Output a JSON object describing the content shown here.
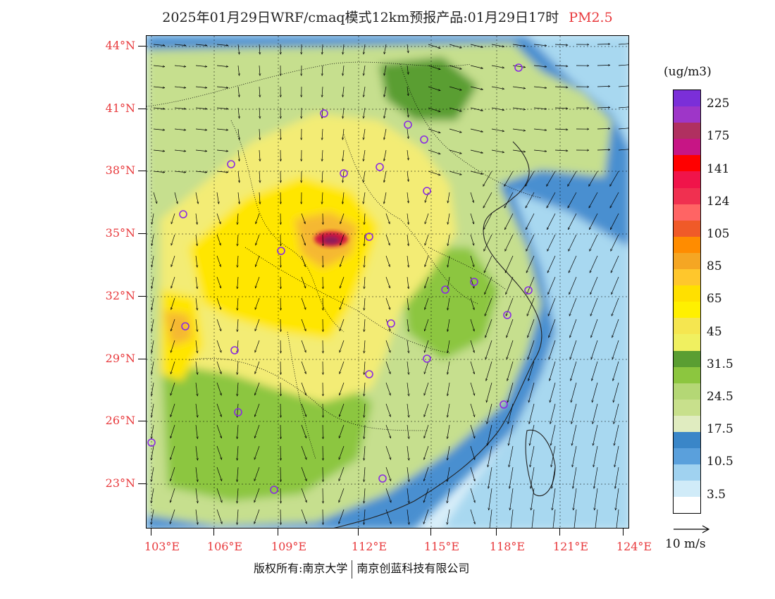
{
  "title": {
    "main": "2025年01月29日WRF/cmaq模式12km预报产品:01月29日17时",
    "species": "PM2.5"
  },
  "latitude_labels": [
    "44°N",
    "41°N",
    "38°N",
    "35°N",
    "32°N",
    "29°N",
    "26°N",
    "23°N"
  ],
  "longitude_labels": [
    "103°E",
    "106°E",
    "109°E",
    "112°E",
    "115°E",
    "118°E",
    "121°E",
    "124°E"
  ],
  "legend": {
    "unit": "(ug/m3)",
    "labels": [
      "225",
      "175",
      "141",
      "124",
      "105",
      "85",
      "65",
      "45",
      "31.5",
      "24.5",
      "17.5",
      "10.5",
      "3.5"
    ],
    "colors": [
      "#7b2fd8",
      "#9e36c8",
      "#b03060",
      "#c71585",
      "#ff0000",
      "#f0144a",
      "#f03050",
      "#ff6464",
      "#f05a28",
      "#ff8c00",
      "#f5a623",
      "#ffc72c",
      "#ffe000",
      "#fff000",
      "#f5e650",
      "#f0f060",
      "#5a9e32",
      "#8cc63f",
      "#b4d775",
      "#c8e08c",
      "#e0ecc0",
      "#3a86c8",
      "#5aa0dc",
      "#a0d2f0",
      "#d0ebf8",
      "#ffffff"
    ]
  },
  "wind_reference": {
    "label": "10 m/s"
  },
  "footer": {
    "left": "版权所有:南京大学",
    "right": "南京创蓝科技有限公司"
  },
  "map_colors": {
    "ocean_light": "#d8eef9",
    "ocean_mid": "#a8d8f0",
    "low_blue": "#4a8fd0",
    "low_green": "#c6df8e",
    "mid_green": "#8cc63f",
    "dark_green": "#5a9e32",
    "yellow_light": "#f3ec74",
    "yellow": "#ffe600",
    "orange": "#f5b830",
    "hotspot": "#d2143c",
    "station_ring": "#8a2be2"
  }
}
